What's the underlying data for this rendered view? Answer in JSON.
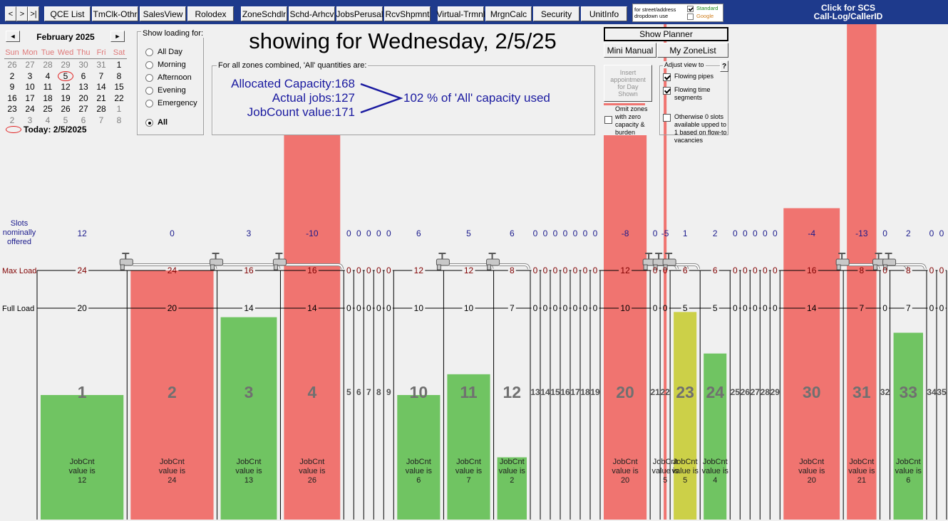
{
  "toolbar": {
    "nav": [
      "<",
      ">",
      ">|"
    ],
    "buttons": [
      "QCE List",
      "TmClk-Othr",
      "SalesView",
      "Rolodex",
      "ZoneSchdlr",
      "Schd-Arhcv",
      "JobsPerusal",
      "RcvShpmnt",
      "Virtual-Trmnl",
      "MrgnCalc",
      "Security",
      "UnitInfo"
    ],
    "address_box": {
      "caption": [
        "for street/address",
        "dropdown use"
      ],
      "options": [
        {
          "label": "Standard",
          "checked": true,
          "color": "#1a8a1a"
        },
        {
          "label": "Google",
          "checked": false,
          "color": "#d08020"
        }
      ]
    },
    "callerid": [
      "Click for SCS",
      "Call-Log/CallerID"
    ]
  },
  "calendar": {
    "month": "February 2025",
    "prev": "◄",
    "next": "►",
    "weekdays": [
      "Sun",
      "Mon",
      "Tue",
      "Wed",
      "Thu",
      "Fri",
      "Sat"
    ],
    "weeks": [
      [
        26,
        27,
        28,
        29,
        30,
        31,
        1
      ],
      [
        2,
        3,
        4,
        5,
        6,
        7,
        8
      ],
      [
        9,
        10,
        11,
        12,
        13,
        14,
        15
      ],
      [
        16,
        17,
        18,
        19,
        20,
        21,
        22
      ],
      [
        23,
        24,
        25,
        26,
        27,
        28,
        1
      ],
      [
        2,
        3,
        4,
        5,
        6,
        7,
        8
      ]
    ],
    "selected_day": 5,
    "today": "Today: 2/5/2025"
  },
  "loading": {
    "title": "Show loading for:",
    "options": [
      "All Day",
      "Morning",
      "Afternoon",
      "Evening",
      "Emergency",
      "All"
    ],
    "selected": 5
  },
  "heading": "showing for Wednesday, 2/5/25",
  "summary": {
    "caption": "For all zones combined, 'All' quantities are:",
    "lines": [
      "Allocated Capacity:168",
      "Actual jobs:127",
      "JobCount value:171"
    ],
    "result": "102 % of 'All' capacity used"
  },
  "controls": {
    "show_planner": "Show Planner",
    "mini_manual": "Mini Manual",
    "my_zonelist": "My ZoneList",
    "insert_appointment": "Insert appointment for Day Shown",
    "omit_zones": {
      "label": "Omit zones with zero capacity & burden",
      "checked": false
    },
    "adjust": {
      "title": "Adjust view to",
      "help": "?",
      "options": [
        {
          "label": "Flowing pipes",
          "checked": true
        },
        {
          "label": "Flowing time segments",
          "checked": true
        },
        {
          "label": "Otherwise 0 slots available upped to 1 based on flow-to vacancies",
          "checked": false
        }
      ]
    }
  },
  "row_labels": {
    "slots": [
      "Slots",
      "nominally",
      "offered"
    ],
    "max_load": "Max Load",
    "full_load": "Full Load"
  },
  "jobcnt_caption": [
    "JobCnt",
    "value is"
  ],
  "zones": [
    {
      "zone": 1,
      "slots": 12,
      "max_load": 24,
      "full_load": 20,
      "jobcnt": 12,
      "color": "#70c462"
    },
    {
      "zone": 2,
      "slots": 0,
      "max_load": 24,
      "full_load": 20,
      "jobcnt": 24,
      "color": "#f07470"
    },
    {
      "zone": 3,
      "slots": 3,
      "max_load": 16,
      "full_load": 14,
      "jobcnt": 13,
      "color": "#70c462"
    },
    {
      "zone": 4,
      "slots": -10,
      "max_load": 16,
      "full_load": 14,
      "jobcnt": 26,
      "color": "#f07470"
    },
    {
      "zone": 5,
      "slots": 0,
      "max_load": 0,
      "full_load": 0
    },
    {
      "zone": 6,
      "slots": 0,
      "max_load": 0,
      "full_load": 0
    },
    {
      "zone": 7,
      "slots": 0,
      "max_load": 0,
      "full_load": 0
    },
    {
      "zone": 8,
      "slots": 0,
      "max_load": 0,
      "full_load": 0
    },
    {
      "zone": 9,
      "slots": 0,
      "max_load": 0,
      "full_load": 0
    },
    {
      "zone": 10,
      "slots": 6,
      "max_load": 12,
      "full_load": 10,
      "jobcnt": 6,
      "color": "#70c462"
    },
    {
      "zone": 11,
      "slots": 5,
      "max_load": 12,
      "full_load": 10,
      "jobcnt": 7,
      "color": "#70c462"
    },
    {
      "zone": 12,
      "slots": 6,
      "max_load": 8,
      "full_load": 7,
      "jobcnt": 2,
      "color": "#70c462"
    },
    {
      "zone": 13,
      "slots": 0,
      "max_load": 0,
      "full_load": 0
    },
    {
      "zone": 14,
      "slots": 0,
      "max_load": 0,
      "full_load": 0
    },
    {
      "zone": 15,
      "slots": 0,
      "max_load": 0,
      "full_load": 0
    },
    {
      "zone": 16,
      "slots": 0,
      "max_load": 0,
      "full_load": 0
    },
    {
      "zone": 17,
      "slots": 0,
      "max_load": 0,
      "full_load": 0
    },
    {
      "zone": 18,
      "slots": 0,
      "max_load": 0,
      "full_load": 0
    },
    {
      "zone": 19,
      "slots": 0,
      "max_load": 0,
      "full_load": 0
    },
    {
      "zone": 20,
      "slots": -8,
      "max_load": 12,
      "full_load": 10,
      "jobcnt": 20,
      "color": "#f07470"
    },
    {
      "zone": 21,
      "slots": 0,
      "max_load": 0,
      "full_load": 0
    },
    {
      "zone": 22,
      "slots": -5,
      "max_load": 0,
      "full_load": 0,
      "jobcnt": 5,
      "color": "#f07470"
    },
    {
      "zone": 23,
      "slots": 1,
      "max_load": 6,
      "full_load": 5,
      "jobcnt": 5,
      "color": "#ccd048"
    },
    {
      "zone": 24,
      "slots": 2,
      "max_load": 6,
      "full_load": 5,
      "jobcnt": 4,
      "color": "#70c462"
    },
    {
      "zone": 25,
      "slots": 0,
      "max_load": 0,
      "full_load": 0
    },
    {
      "zone": 26,
      "slots": 0,
      "max_load": 0,
      "full_load": 0
    },
    {
      "zone": 27,
      "slots": 0,
      "max_load": 0,
      "full_load": 0
    },
    {
      "zone": 28,
      "slots": 0,
      "max_load": 0,
      "full_load": 0
    },
    {
      "zone": 29,
      "slots": 0,
      "max_load": 0,
      "full_load": 0
    },
    {
      "zone": 30,
      "slots": -4,
      "max_load": 16,
      "full_load": 14,
      "jobcnt": 20,
      "color": "#f07470"
    },
    {
      "zone": 31,
      "slots": -13,
      "max_load": 8,
      "full_load": 7,
      "jobcnt": 21,
      "color": "#f07470"
    },
    {
      "zone": 32,
      "slots": 0,
      "max_load": 0,
      "full_load": 0
    },
    {
      "zone": 33,
      "slots": 2,
      "max_load": 8,
      "full_load": 7,
      "jobcnt": 6,
      "color": "#70c462"
    },
    {
      "zone": 34,
      "slots": 0,
      "max_load": 0,
      "full_load": 0
    },
    {
      "zone": 35,
      "slots": 0,
      "max_load": 0,
      "full_load": 0
    }
  ]
}
